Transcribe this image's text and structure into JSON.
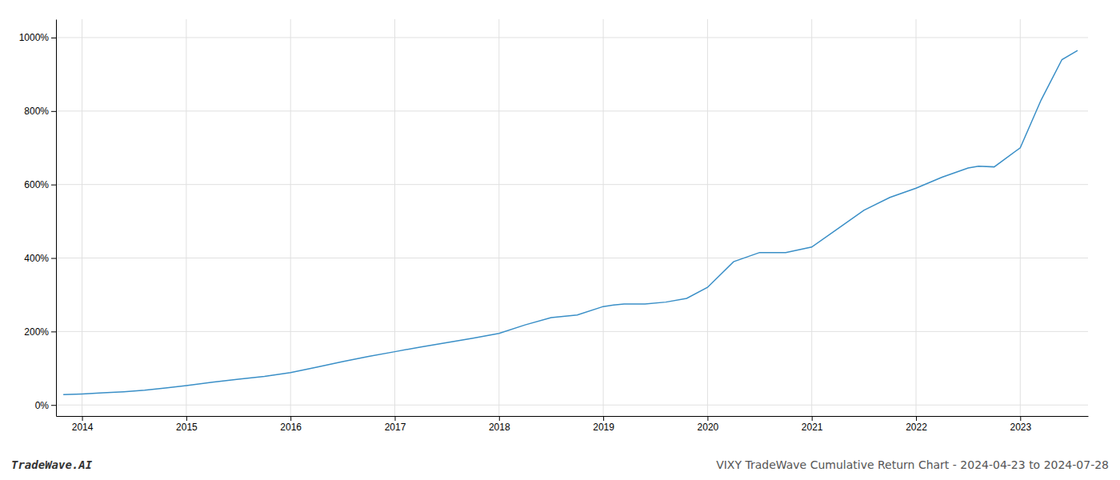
{
  "chart_data": {
    "type": "line",
    "title": "VIXY TradeWave Cumulative Return Chart - 2024-04-23 to 2024-07-28",
    "annotations": [
      "TradeWave.AI"
    ],
    "x": [
      2013.82,
      2014.0,
      2014.2,
      2014.4,
      2014.6,
      2014.8,
      2015.0,
      2015.25,
      2015.5,
      2015.75,
      2016.0,
      2016.25,
      2016.5,
      2016.75,
      2017.0,
      2017.25,
      2017.5,
      2017.75,
      2018.0,
      2018.25,
      2018.5,
      2018.75,
      2019.0,
      2019.1,
      2019.2,
      2019.4,
      2019.6,
      2019.8,
      2020.0,
      2020.25,
      2020.5,
      2020.75,
      2021.0,
      2021.25,
      2021.5,
      2021.75,
      2022.0,
      2022.25,
      2022.5,
      2022.6,
      2022.75,
      2023.0,
      2023.2,
      2023.4,
      2023.55
    ],
    "values": [
      28,
      30,
      33,
      36,
      40,
      46,
      53,
      62,
      70,
      78,
      88,
      103,
      118,
      132,
      145,
      158,
      170,
      182,
      195,
      218,
      238,
      245,
      268,
      272,
      275,
      275,
      280,
      290,
      320,
      390,
      415,
      415,
      430,
      480,
      530,
      565,
      590,
      620,
      645,
      650,
      648,
      700,
      830,
      940,
      965
    ],
    "color": "#3a8fc7",
    "xlim": [
      2013.75,
      2023.65
    ],
    "xticks": [
      2014,
      2015,
      2016,
      2017,
      2018,
      2019,
      2020,
      2021,
      2022,
      2023
    ],
    "ylim": [
      -30,
      1050
    ],
    "yticks": [
      {
        "value": 0,
        "label": "0%"
      },
      {
        "value": 200,
        "label": "200%"
      },
      {
        "value": 400,
        "label": "400%"
      },
      {
        "value": 600,
        "label": "600%"
      },
      {
        "value": 800,
        "label": "800%"
      },
      {
        "value": 1000,
        "label": "1000%"
      }
    ],
    "grid": true
  }
}
